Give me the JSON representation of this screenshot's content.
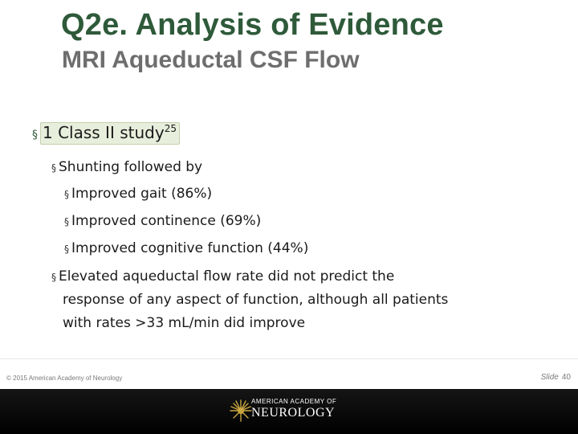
{
  "slide": {
    "title": "Q2e. Analysis of Evidence",
    "subtitle": "MRI Aqueductal CSF Flow",
    "bullets": {
      "main": {
        "text": "1 Class II study",
        "sup": "25"
      },
      "shunting": "Shunting followed by",
      "gait": "Improved gait (86%)",
      "continence": "Improved continence (69%)",
      "cognitive": "Improved cognitive function (44%)",
      "elevated_line1": "Elevated aqueductal flow rate did not predict the",
      "elevated_line2": "response of any aspect of function, although all patients",
      "elevated_line3": "with rates >33 mL/min did improve"
    },
    "bullet_glyph": "§"
  },
  "footer": {
    "copyright": "© 2015 American Academy of Neurology",
    "slide_label": "Slide",
    "slide_number": "40"
  },
  "logo": {
    "line1": "AMERICAN ACADEMY OF",
    "line2": "NEUROLOGY",
    "color": "#c9a640"
  },
  "colors": {
    "title": "#2e5a3a",
    "subtitle": "#6e6e6e",
    "highlight": "#e8eedc",
    "bottom_bar": "#000000"
  }
}
